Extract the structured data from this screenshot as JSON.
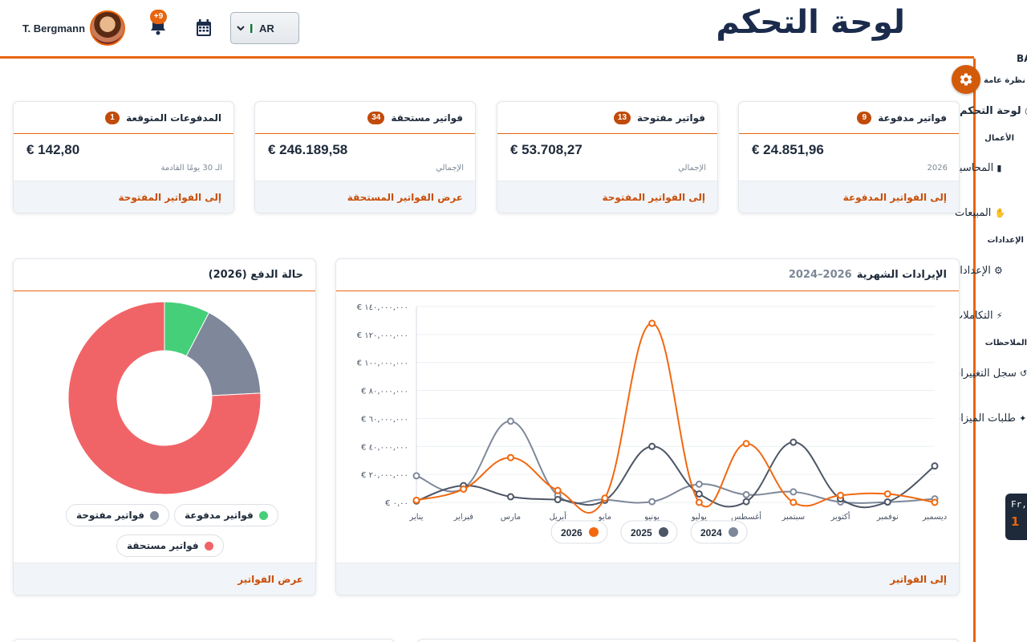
{
  "header": {
    "title": "لوحة التحكم",
    "user_name": "T. Bergmann",
    "notifications_badge": "+9",
    "language": "AR"
  },
  "sidebar": {
    "brand": "BA",
    "items": [
      {
        "label": "نظرة عامة",
        "kind": "section"
      },
      {
        "label": "لوحة التحكم",
        "kind": "item",
        "icon": "dashboard-icon",
        "active": true
      },
      {
        "label": "الأعمال",
        "kind": "section"
      },
      {
        "label": "المحاسبة",
        "kind": "item",
        "icon": "book-icon"
      },
      {
        "label": "المبيعات",
        "kind": "item",
        "icon": "handshake-icon"
      },
      {
        "label": "الإعدادات",
        "kind": "section"
      },
      {
        "label": "الإعدادات",
        "kind": "item",
        "icon": "gear-icon"
      },
      {
        "label": "التكاملات",
        "kind": "item",
        "icon": "plug-icon"
      },
      {
        "label": "الملاحظات",
        "kind": "section"
      },
      {
        "label": "سجل التغييرات",
        "kind": "item",
        "icon": "history-icon"
      },
      {
        "label": "طلبات الميزات",
        "kind": "item",
        "icon": "lightbulb-icon"
      }
    ],
    "clock_day": "Fr,",
    "clock_num": "1"
  },
  "kpis": [
    {
      "title": "فواتير مدفوعة",
      "count": "9",
      "amount": "€ 24.851,96",
      "note": "2026",
      "link": "إلى الفواتير المدفوعة"
    },
    {
      "title": "فواتير مفتوحة",
      "count": "13",
      "amount": "€ 53.708,27",
      "note": "الإجمالي",
      "link": "إلى الفواتير المفتوحة"
    },
    {
      "title": "فواتير مستحقة",
      "count": "34",
      "amount": "€ 246.189,58",
      "note": "الإجمالي",
      "link": "عرض الفواتير المستحقة"
    },
    {
      "title": "المدفوعات المتوقعة",
      "count": "1",
      "amount": "€ 142,80",
      "note": "الـ 30 يومًا القادمة",
      "link": "إلى الفواتير المفتوحة"
    }
  ],
  "revenue_panel": {
    "title": "الإيرادات الشهرية",
    "subtitle": "2024–2026",
    "link": "إلى الفواتير"
  },
  "status_panel": {
    "title": "حالة الدفع (2026)",
    "link": "عرض الفواتير",
    "legend": [
      {
        "label": "فواتير مدفوعة",
        "color": "#46cf79"
      },
      {
        "label": "فواتير مفتوحة",
        "color": "#7e889a"
      },
      {
        "label": "فواتير مستحقة",
        "color": "#f06467"
      }
    ]
  },
  "chart_data": [
    {
      "type": "line",
      "categories": [
        "يناير",
        "فبراير",
        "مارس",
        "أبريل",
        "مايو",
        "يونيو",
        "يوليو",
        "أغسطس",
        "سبتمبر",
        "أكتوبر",
        "نوفمبر",
        "ديسمبر"
      ],
      "ylim": [
        0,
        140000000
      ],
      "y_ticks": [
        "€ ٠,٠٠",
        "€ ٢٠,٠٠٠,٠٠٠",
        "€ ٤٠,٠٠٠,٠٠٠",
        "€ ٦٠,٠٠٠,٠٠٠",
        "€ ٨٠,٠٠٠,٠٠٠",
        "€ ١٠٠,٠٠٠,٠٠٠",
        "€ ١٢٠,٠٠٠,٠٠٠",
        "€ ١٤٠,٠٠٠,٠٠٠"
      ],
      "grid": true,
      "legend_position": "bottom",
      "series": [
        {
          "name": "2024",
          "color": "#7e889a",
          "values": [
            19000000,
            10000000,
            58000000,
            5000000,
            2000000,
            500000,
            13000000,
            5500000,
            7500000,
            300000,
            200000,
            2500000
          ]
        },
        {
          "name": "2025",
          "color": "#4d5666",
          "values": [
            1000000,
            12000000,
            4000000,
            2000000,
            1500000,
            40000000,
            6000000,
            500000,
            43000000,
            2500000,
            300000,
            26000000
          ]
        },
        {
          "name": "2026",
          "color": "#f2680f",
          "values": [
            1500000,
            9500000,
            32000000,
            8500000,
            3000000,
            128000000,
            0,
            42000000,
            0,
            5000000,
            6000000,
            0
          ]
        }
      ]
    },
    {
      "type": "pie",
      "donut": true,
      "labels": [
        "فواتير مدفوعة",
        "فواتير مفتوحة",
        "فواتير مستحقة"
      ],
      "values": [
        24851.96,
        53708.27,
        246189.58
      ],
      "colors": [
        "#46cf79",
        "#7e889a",
        "#f06467"
      ]
    }
  ]
}
